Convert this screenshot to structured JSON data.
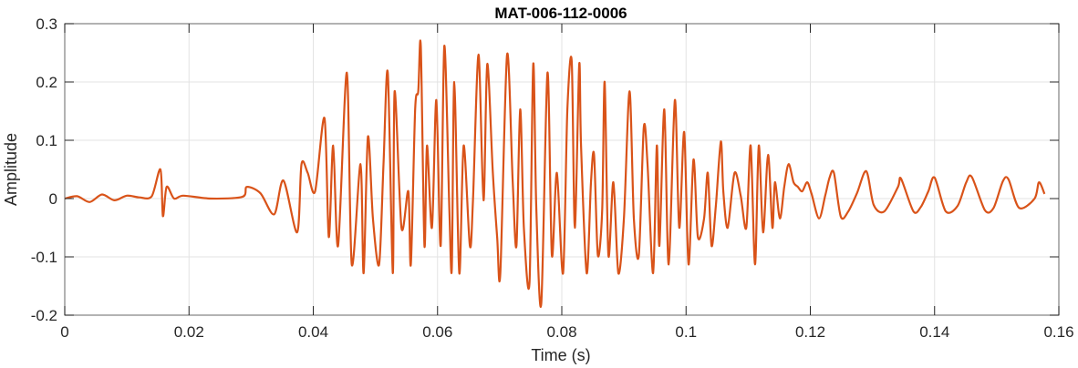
{
  "chart_data": {
    "type": "line",
    "title": "MAT-006-112-0006",
    "xlabel": "Time (s)",
    "ylabel": "Amplitude",
    "xlim": [
      0,
      0.16
    ],
    "ylim": [
      -0.2,
      0.3
    ],
    "grid": true,
    "line_color": "#D95319",
    "xticks": [
      0,
      0.02,
      0.04,
      0.06,
      0.08,
      0.1,
      0.12,
      0.14,
      0.16
    ],
    "xtick_labels": [
      "0",
      "0.02",
      "0.04",
      "0.06",
      "0.08",
      "0.1",
      "0.12",
      "0.14",
      "0.16"
    ],
    "yticks": [
      -0.2,
      -0.1,
      0,
      0.1,
      0.2,
      0.3
    ],
    "ytick_labels": [
      "-0.2",
      "-0.1",
      "0",
      "0.1",
      "0.2",
      "0.3"
    ],
    "series": [
      {
        "x": [
          0,
          0.002,
          0.004,
          0.006,
          0.008,
          0.01,
          0.012,
          0.014,
          0.0154,
          0.0158,
          0.0164,
          0.0176,
          0.0191,
          0.0235,
          0.0286,
          0.0293,
          0.0315,
          0.0337,
          0.0352,
          0.0374,
          0.0381,
          0.0391,
          0.0403,
          0.0418,
          0.0425,
          0.0432,
          0.044,
          0.0454,
          0.0462,
          0.0476,
          0.0481,
          0.0488,
          0.0496,
          0.0506,
          0.0513,
          0.052,
          0.0528,
          0.0531,
          0.0542,
          0.0553,
          0.0557,
          0.0564,
          0.0569,
          0.0573,
          0.0579,
          0.0583,
          0.0591,
          0.0598,
          0.0605,
          0.0611,
          0.0619,
          0.0623,
          0.0627,
          0.0635,
          0.0642,
          0.0652,
          0.0657,
          0.0666,
          0.0674,
          0.068,
          0.0689,
          0.0696,
          0.0701,
          0.0712,
          0.0721,
          0.0727,
          0.0733,
          0.0739,
          0.0748,
          0.0754,
          0.0759,
          0.0767,
          0.0777,
          0.0784,
          0.0792,
          0.0802,
          0.0809,
          0.0816,
          0.0821,
          0.0828,
          0.0831,
          0.084,
          0.0847,
          0.0852,
          0.0858,
          0.0865,
          0.0869,
          0.0875,
          0.0883,
          0.0891,
          0.09,
          0.0909,
          0.0916,
          0.0924,
          0.0932,
          0.0938,
          0.0947,
          0.0953,
          0.0957,
          0.0965,
          0.0972,
          0.0982,
          0.0989,
          0.0997,
          0.1004,
          0.1012,
          0.1019,
          0.1029,
          0.1035,
          0.1041,
          0.1048,
          0.1056,
          0.106,
          0.1067,
          0.1078,
          0.1088,
          0.1097,
          0.1104,
          0.1111,
          0.1117,
          0.1124,
          0.1132,
          0.1139,
          0.1143,
          0.1151,
          0.1158,
          0.1165,
          0.1173,
          0.118,
          0.1187,
          0.1195,
          0.1202,
          0.1214,
          0.1224,
          0.1231,
          0.1238,
          0.1249,
          0.1261,
          0.1275,
          0.129,
          0.1302,
          0.1319,
          0.1341,
          0.1346,
          0.1366,
          0.1378,
          0.139,
          0.14,
          0.1418,
          0.1437,
          0.1451,
          0.146,
          0.1481,
          0.1495,
          0.151,
          0.1519,
          0.1536,
          0.1561,
          0.1568,
          0.1577
        ],
        "y": [
          0,
          0.004,
          -0.006,
          0.007,
          -0.003,
          0.005,
          0.002,
          0.004,
          0.05,
          -0.03,
          0.02,
          0,
          0.005,
          0,
          0.003,
          0.02,
          0.009,
          -0.027,
          0.031,
          -0.058,
          0.059,
          0.044,
          0.0125,
          0.138,
          -0.066,
          0.091,
          -0.081,
          0.216,
          -0.113,
          0.059,
          -0.128,
          0.106,
          -0.034,
          -0.113,
          0.059,
          0.216,
          -0.128,
          0.184,
          -0.05,
          0.0125,
          -0.113,
          0.153,
          0.184,
          0.262,
          -0.081,
          0.091,
          -0.05,
          0.169,
          -0.081,
          0.262,
          -0.019,
          -0.12,
          0.2,
          -0.128,
          0.091,
          -0.081,
          -0.003,
          0.247,
          -0.003,
          0.231,
          0.044,
          -0.066,
          -0.128,
          0.247,
          0.028,
          -0.081,
          0.153,
          -0.05,
          -0.144,
          0.231,
          -0.019,
          -0.18,
          0.216,
          -0.097,
          0.044,
          -0.128,
          0.153,
          0.235,
          -0.05,
          0.23,
          0.091,
          -0.128,
          0.028,
          0.075,
          -0.097,
          -0.019,
          0.2,
          -0.097,
          0.028,
          -0.128,
          -0.034,
          0.184,
          -0.034,
          -0.097,
          0.122,
          0.059,
          -0.128,
          0.091,
          -0.081,
          0.153,
          -0.113,
          0.169,
          -0.05,
          0.114,
          -0.113,
          0.067,
          -0.066,
          -0.034,
          0.044,
          -0.081,
          -0.011,
          0.098,
          0.0125,
          -0.05,
          0.044,
          0.0047,
          -0.05,
          0.091,
          -0.113,
          0.091,
          -0.058,
          0.075,
          -0.05,
          0.028,
          -0.034,
          0.02,
          0.059,
          0.028,
          0.02,
          0.0125,
          0.028,
          0.008,
          -0.034,
          0.005,
          0.036,
          0.044,
          -0.031,
          -0.022,
          0.009,
          0.047,
          -0.011,
          -0.022,
          0.02,
          0.034,
          -0.022,
          -0.014,
          0.0125,
          0.036,
          -0.022,
          -0.0125,
          0.028,
          0.037,
          -0.02,
          -0.016,
          0.03,
          0.033,
          -0.016,
          0,
          0.028,
          0.008
        ]
      }
    ]
  }
}
